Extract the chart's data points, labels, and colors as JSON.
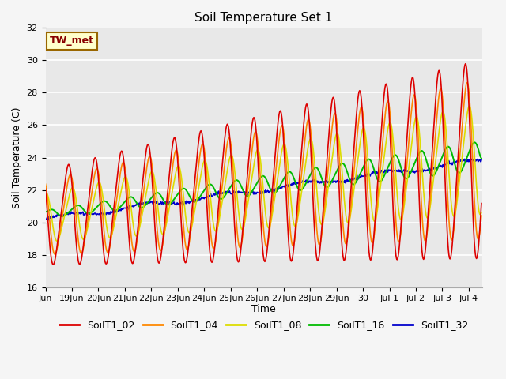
{
  "title": "Soil Temperature Set 1",
  "xlabel": "Time",
  "ylabel": "Soil Temperature (C)",
  "ylim": [
    16,
    32
  ],
  "bg_color": "#e8e8e8",
  "fig_color": "#f5f5f5",
  "grid_color": "#ffffff",
  "series_colors": {
    "SoilT1_02": "#dd0000",
    "SoilT1_04": "#ff8800",
    "SoilT1_08": "#dddd00",
    "SoilT1_16": "#00bb00",
    "SoilT1_32": "#0000cc"
  },
  "annotation_text": "TW_met",
  "lw": 1.2
}
